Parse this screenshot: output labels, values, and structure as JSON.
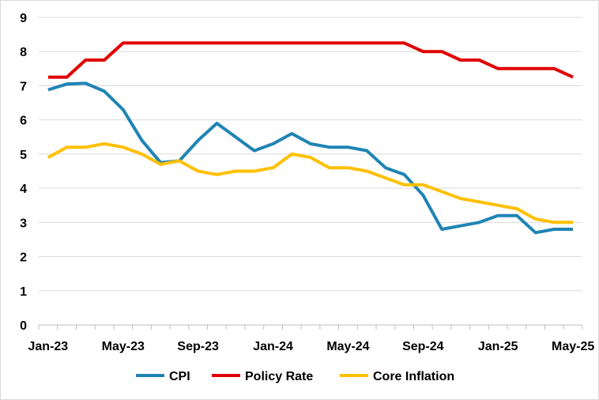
{
  "chart_data": {
    "type": "line",
    "title": "",
    "xlabel": "",
    "ylabel": "",
    "ylim": [
      0,
      9
    ],
    "yticks": [
      "0",
      "1",
      "2",
      "3",
      "4",
      "5",
      "6",
      "7",
      "8",
      "9"
    ],
    "grid": true,
    "legend_position": "bottom",
    "x": [
      "Jan-23",
      "Feb-23",
      "Mar-23",
      "Apr-23",
      "May-23",
      "Jun-23",
      "Jul-23",
      "Aug-23",
      "Sep-23",
      "Oct-23",
      "Nov-23",
      "Dec-23",
      "Jan-24",
      "Feb-24",
      "Mar-24",
      "Apr-24",
      "May-24",
      "Jun-24",
      "Jul-24",
      "Aug-24",
      "Sep-24",
      "Oct-24",
      "Nov-24",
      "Dec-24",
      "Jan-25",
      "Feb-25",
      "Mar-25",
      "Apr-25",
      "May-25"
    ],
    "xtick_labels": [
      "Jan-23",
      "May-23",
      "Sep-23",
      "Jan-24",
      "May-24",
      "Sep-24",
      "Jan-25",
      "May-25"
    ],
    "series": [
      {
        "name": "CPI",
        "color": "#1f84b4",
        "values": [
          6.88,
          7.05,
          7.07,
          6.84,
          6.3,
          5.4,
          4.75,
          4.8,
          5.4,
          5.9,
          5.5,
          5.1,
          5.3,
          5.6,
          5.3,
          5.2,
          5.2,
          5.1,
          4.6,
          4.4,
          3.8,
          2.8,
          2.9,
          3.0,
          3.2,
          3.2,
          2.7,
          2.8,
          2.8
        ]
      },
      {
        "name": "Policy Rate",
        "color": "#e00000",
        "values": [
          7.25,
          7.25,
          7.75,
          7.75,
          8.25,
          8.25,
          8.25,
          8.25,
          8.25,
          8.25,
          8.25,
          8.25,
          8.25,
          8.25,
          8.25,
          8.25,
          8.25,
          8.25,
          8.25,
          8.25,
          8.0,
          8.0,
          7.75,
          7.75,
          7.5,
          7.5,
          7.5,
          7.5,
          7.25
        ]
      },
      {
        "name": "Core Inflation",
        "color": "#ffc000",
        "values": [
          4.9,
          5.2,
          5.2,
          5.3,
          5.2,
          5.0,
          4.7,
          4.8,
          4.5,
          4.4,
          4.5,
          4.5,
          4.6,
          5.0,
          4.9,
          4.6,
          4.6,
          4.5,
          4.3,
          4.1,
          4.1,
          3.9,
          3.7,
          3.6,
          3.5,
          3.4,
          3.1,
          3.0,
          3.0
        ]
      }
    ]
  }
}
